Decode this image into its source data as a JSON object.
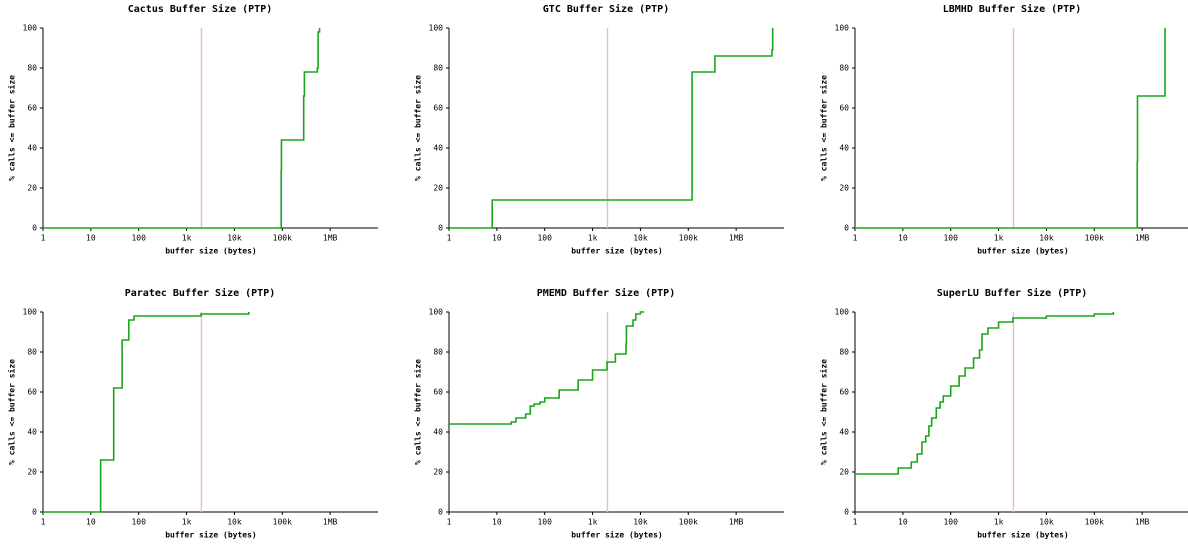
{
  "chart_data": [
    {
      "type": "line",
      "step": "post",
      "title": "Cactus Buffer Size (PTP)",
      "xlabel": "buffer size (bytes)",
      "ylabel": "% calls <= buffer size",
      "xscale": "log",
      "color": "#1aa51a",
      "threshold": 2048,
      "threshold_color": "#f5b8b8",
      "x": [
        1,
        95000,
        96000,
        280000,
        290000,
        540000,
        560000,
        600000
      ],
      "values": [
        0,
        29,
        44,
        66,
        78,
        80,
        98,
        100
      ],
      "xlim": [
        1,
        10000000
      ],
      "ylim": [
        0,
        100
      ],
      "xticks": [
        1,
        10,
        100,
        {
          "value": 1000,
          "label": "1k"
        },
        {
          "value": 10000,
          "label": "10k"
        },
        {
          "value": 100000,
          "label": "100k"
        },
        {
          "value": 1000000,
          "label": "1MB"
        }
      ],
      "yticks": [
        0,
        20,
        40,
        60,
        80,
        100
      ]
    },
    {
      "type": "line",
      "step": "post",
      "title": "GTC Buffer Size (PTP)",
      "xlabel": "buffer size (bytes)",
      "ylabel": "% calls <= buffer size",
      "xscale": "log",
      "color": "#1aa51a",
      "threshold": 2048,
      "threshold_color": "#f5b8b8",
      "x": [
        1,
        8,
        120000,
        360000,
        5600000,
        5800000
      ],
      "values": [
        0,
        14,
        78,
        86,
        89,
        100
      ],
      "xlim": [
        1,
        10000000
      ],
      "ylim": [
        0,
        100
      ],
      "xticks": [
        1,
        10,
        100,
        {
          "value": 1000,
          "label": "1k"
        },
        {
          "value": 10000,
          "label": "10k"
        },
        {
          "value": 100000,
          "label": "100k"
        },
        {
          "value": 1000000,
          "label": "1MB"
        }
      ],
      "yticks": [
        0,
        20,
        40,
        60,
        80,
        100
      ]
    },
    {
      "type": "line",
      "step": "post",
      "title": "LBMHD Buffer Size (PTP)",
      "xlabel": "buffer size (bytes)",
      "ylabel": "% calls <= buffer size",
      "xscale": "log",
      "color": "#1aa51a",
      "threshold": 2048,
      "threshold_color": "#f5b8b8",
      "x": [
        1,
        790000,
        800000,
        3000000
      ],
      "values": [
        0,
        33,
        66,
        100
      ],
      "xlim": [
        1,
        10000000
      ],
      "ylim": [
        0,
        100
      ],
      "xticks": [
        1,
        10,
        100,
        {
          "value": 1000,
          "label": "1k"
        },
        {
          "value": 10000,
          "label": "10k"
        },
        {
          "value": 100000,
          "label": "100k"
        },
        {
          "value": 1000000,
          "label": "1MB"
        }
      ],
      "yticks": [
        0,
        20,
        40,
        60,
        80,
        100
      ]
    },
    {
      "type": "line",
      "step": "post",
      "title": "Paratec Buffer Size (PTP)",
      "xlabel": "buffer size (bytes)",
      "ylabel": "% calls <= buffer size",
      "xscale": "log",
      "color": "#1aa51a",
      "threshold": 2048,
      "threshold_color": "#f5b8b8",
      "x": [
        1,
        16,
        30,
        45,
        62,
        80,
        2000,
        20000
      ],
      "values": [
        0,
        26,
        62,
        86,
        96,
        98,
        99,
        100
      ],
      "xlim": [
        1,
        10000000
      ],
      "ylim": [
        0,
        100
      ],
      "xticks": [
        1,
        10,
        100,
        {
          "value": 1000,
          "label": "1k"
        },
        {
          "value": 10000,
          "label": "10k"
        },
        {
          "value": 100000,
          "label": "100k"
        },
        {
          "value": 1000000,
          "label": "1MB"
        }
      ],
      "yticks": [
        0,
        20,
        40,
        60,
        80,
        100
      ]
    },
    {
      "type": "line",
      "step": "post",
      "title": "PMEMD Buffer Size (PTP)",
      "xlabel": "buffer size (bytes)",
      "ylabel": "% calls <= buffer size",
      "xscale": "log",
      "color": "#1aa51a",
      "threshold": 2048,
      "threshold_color": "#f5b8b8",
      "x": [
        1,
        20,
        25,
        40,
        50,
        60,
        80,
        100,
        200,
        500,
        1000,
        2000,
        3000,
        5000,
        5100,
        7000,
        8000,
        10000,
        12000
      ],
      "values": [
        44,
        45,
        47,
        49,
        53,
        54,
        55,
        57,
        61,
        66,
        71,
        75,
        79,
        84,
        93,
        96,
        99,
        100,
        100
      ],
      "xlim": [
        1,
        10000000
      ],
      "ylim": [
        0,
        100
      ],
      "xticks": [
        1,
        10,
        100,
        {
          "value": 1000,
          "label": "1k"
        },
        {
          "value": 10000,
          "label": "10k"
        },
        {
          "value": 100000,
          "label": "100k"
        },
        {
          "value": 1000000,
          "label": "1MB"
        }
      ],
      "yticks": [
        0,
        20,
        40,
        60,
        80,
        100
      ]
    },
    {
      "type": "line",
      "step": "post",
      "title": "SuperLU Buffer Size (PTP)",
      "xlabel": "buffer size (bytes)",
      "ylabel": "% calls <= buffer size",
      "xscale": "log",
      "color": "#1aa51a",
      "threshold": 2048,
      "threshold_color": "#f5b8b8",
      "x": [
        1,
        8,
        15,
        20,
        25,
        30,
        35,
        40,
        50,
        60,
        70,
        100,
        150,
        200,
        300,
        400,
        450,
        600,
        1000,
        2000,
        10000,
        100000,
        250000
      ],
      "values": [
        19,
        22,
        25,
        29,
        35,
        38,
        43,
        47,
        52,
        55,
        58,
        63,
        68,
        72,
        77,
        81,
        89,
        92,
        95,
        97,
        98,
        99,
        100
      ],
      "xlim": [
        1,
        10000000
      ],
      "ylim": [
        0,
        100
      ],
      "xticks": [
        1,
        10,
        100,
        {
          "value": 1000,
          "label": "1k"
        },
        {
          "value": 10000,
          "label": "10k"
        },
        {
          "value": 100000,
          "label": "100k"
        },
        {
          "value": 1000000,
          "label": "1MB"
        }
      ],
      "yticks": [
        0,
        20,
        40,
        60,
        80,
        100
      ]
    }
  ]
}
